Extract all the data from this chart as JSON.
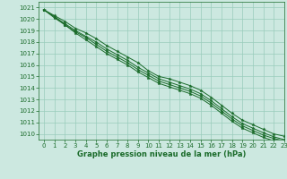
{
  "background_color": "#cce8e0",
  "grid_color": "#99ccbb",
  "line_color": "#1a6b2a",
  "marker_color": "#1a6b2a",
  "xlabel": "Graphe pression niveau de la mer (hPa)",
  "xlabel_color": "#1a6b2a",
  "tick_color": "#1a6b2a",
  "xlim": [
    -0.5,
    23
  ],
  "ylim": [
    1009.5,
    1021.5
  ],
  "yticks": [
    1010,
    1011,
    1012,
    1013,
    1014,
    1015,
    1016,
    1017,
    1018,
    1019,
    1020,
    1021
  ],
  "xticks": [
    0,
    1,
    2,
    3,
    4,
    5,
    6,
    7,
    8,
    9,
    10,
    11,
    12,
    13,
    14,
    15,
    16,
    17,
    18,
    19,
    20,
    21,
    22,
    23
  ],
  "series": [
    [
      1020.8,
      1020.3,
      1019.8,
      1019.2,
      1018.8,
      1018.3,
      1017.7,
      1017.2,
      1016.7,
      1016.2,
      1015.5,
      1015.0,
      1014.8,
      1014.5,
      1014.2,
      1013.8,
      1013.2,
      1012.5,
      1011.8,
      1011.2,
      1010.8,
      1010.4,
      1010.0,
      1009.8
    ],
    [
      1020.8,
      1020.2,
      1019.6,
      1019.0,
      1018.5,
      1018.0,
      1017.4,
      1016.9,
      1016.4,
      1015.8,
      1015.3,
      1014.8,
      1014.5,
      1014.2,
      1013.9,
      1013.5,
      1012.9,
      1012.2,
      1011.5,
      1010.9,
      1010.5,
      1010.1,
      1009.75,
      1009.5
    ],
    [
      1020.8,
      1020.2,
      1019.5,
      1018.9,
      1018.4,
      1017.8,
      1017.2,
      1016.7,
      1016.2,
      1015.6,
      1015.1,
      1014.6,
      1014.3,
      1014.0,
      1013.7,
      1013.3,
      1012.7,
      1012.0,
      1011.3,
      1010.7,
      1010.3,
      1009.9,
      1009.6,
      1009.4
    ],
    [
      1020.8,
      1020.1,
      1019.5,
      1018.8,
      1018.2,
      1017.6,
      1017.0,
      1016.5,
      1016.0,
      1015.4,
      1014.9,
      1014.4,
      1014.1,
      1013.8,
      1013.5,
      1013.1,
      1012.5,
      1011.8,
      1011.1,
      1010.5,
      1010.1,
      1009.7,
      1009.4,
      1009.2
    ]
  ]
}
